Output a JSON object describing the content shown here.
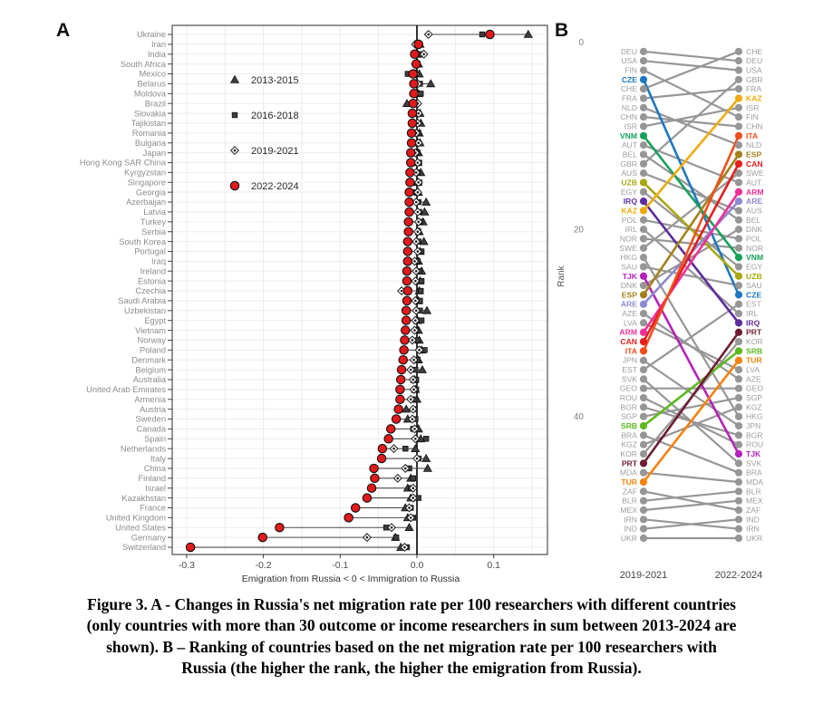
{
  "figure": {
    "panel_a_label": "A",
    "panel_b_label": "B",
    "caption_lines": [
      "Figure 3. A - Changes in Russia's net migration rate per 100 researchers with different countries",
      "(only countries with more than 30 outcome or income researchers in sum between 2013-2024 are",
      "shown). B – Ranking of countries based on the net migration rate per 100 researchers with",
      "Russia (the higher the rank, the higher the emigration from Russia)."
    ]
  },
  "chart_data": [
    {
      "type": "scatter",
      "title": "",
      "xlabel": "Emigration from Russia < 0 < Immigration to Russia",
      "xticks": [
        -0.3,
        -0.2,
        -0.1,
        0.0,
        0.1
      ],
      "xtick_labels": [
        "-0.3",
        "-0.2",
        "-0.1",
        "0.0",
        "0.1"
      ],
      "xlim": [
        -0.32,
        0.17
      ],
      "grid": true,
      "legend_position": "upper-left-inside",
      "zero_line": true,
      "marker_colors": {
        "default": "#3e3e3e",
        "highlight": "#e31a1c"
      },
      "categories": [
        "Ukraine",
        "Iran",
        "India",
        "South Africa",
        "Mexico",
        "Belarus",
        "Moldova",
        "Brazil",
        "Slovakia",
        "Tajikistan",
        "Romania",
        "Bulgaria",
        "Japan",
        "Hong Kong SAR China",
        "Kyrgyzstan",
        "Singapore",
        "Georgia",
        "Azerbaijan",
        "Latvia",
        "Turkey",
        "Serbia",
        "South Korea",
        "Portugal",
        "Iraq",
        "Ireland",
        "Estonia",
        "Czechia",
        "Saudi Arabia",
        "Uzbekistan",
        "Egypt",
        "Vietnam",
        "Norway",
        "Poland",
        "Denmark",
        "Belgium",
        "Australia",
        "United Arab Emirates",
        "Armenia",
        "Austria",
        "Sweden",
        "Canada",
        "Spain",
        "Netherlands",
        "Italy",
        "China",
        "Finland",
        "Israel",
        "Kazakhstan",
        "France",
        "United Kingdom",
        "United States",
        "Germany",
        "Switzerland"
      ],
      "series": [
        {
          "name": "2013-2015",
          "marker": "triangle",
          "values": [
            0.145,
            0.004,
            0.001,
            0.002,
            0.003,
            0.018,
            0.002,
            -0.013,
            0.004,
            0.005,
            0.003,
            0.004,
            0.002,
            0.001,
            0.005,
            0.001,
            0.002,
            0.012,
            0.01,
            0.008,
            0.003,
            0.009,
            0.004,
            0.002,
            0.006,
            0.004,
            0.003,
            0.002,
            0.013,
            0.001,
            0.002,
            0.003,
            0.006,
            0.002,
            0.007,
            -0.003,
            -0.002,
            0.0,
            -0.014,
            -0.012,
            0.002,
            0.005,
            -0.002,
            0.012,
            0.014,
            -0.008,
            -0.012,
            -0.008,
            -0.015,
            -0.012,
            -0.01,
            -0.028,
            -0.021
          ]
        },
        {
          "name": "2016-2018",
          "marker": "square",
          "values": [
            0.085,
            0.001,
            0.004,
            0.001,
            -0.012,
            0.004,
            0.005,
            -0.001,
            0.001,
            -0.001,
            0.002,
            0.001,
            0.001,
            0.003,
            0.001,
            0.003,
            -0.001,
            0.002,
            0.003,
            0.004,
            0.002,
            0.002,
            0.006,
            0.001,
            0.003,
            0.006,
            0.005,
            0.004,
            0.004,
            0.006,
            -0.001,
            0.001,
            0.01,
            0.001,
            -0.002,
            -0.001,
            -0.001,
            -0.003,
            -0.003,
            -0.002,
            -0.005,
            0.012,
            -0.015,
            0.002,
            -0.01,
            -0.005,
            -0.008,
            0.002,
            -0.008,
            -0.005,
            -0.04,
            -0.027,
            -0.013
          ]
        },
        {
          "name": "2019-2021",
          "marker": "diamond",
          "values": [
            0.015,
            -0.002,
            0.009,
            -0.002,
            -0.002,
            0.001,
            -0.001,
            0.001,
            0.002,
            0.001,
            -0.001,
            0.002,
            -0.002,
            0.001,
            -0.001,
            0.002,
            0.001,
            -0.001,
            0.001,
            0.002,
            0.001,
            -0.001,
            0.001,
            -0.003,
            -0.001,
            -0.002,
            -0.02,
            -0.002,
            -0.001,
            -0.002,
            -0.003,
            -0.006,
            0.003,
            -0.004,
            -0.008,
            -0.005,
            -0.004,
            -0.008,
            -0.005,
            -0.006,
            -0.003,
            -0.002,
            -0.03,
            0.0,
            -0.015,
            -0.025,
            -0.005,
            -0.005,
            -0.01,
            -0.008,
            -0.033,
            -0.065,
            -0.016
          ]
        },
        {
          "name": "2022-2024",
          "marker": "circle",
          "color": "#e31a1c",
          "values": [
            0.095,
            0.002,
            -0.003,
            -0.001,
            -0.005,
            -0.004,
            -0.004,
            -0.005,
            -0.006,
            -0.006,
            -0.007,
            -0.007,
            -0.008,
            -0.008,
            -0.009,
            -0.009,
            -0.01,
            -0.01,
            -0.01,
            -0.011,
            -0.011,
            -0.012,
            -0.012,
            -0.012,
            -0.013,
            -0.013,
            -0.012,
            -0.013,
            -0.014,
            -0.014,
            -0.015,
            -0.016,
            -0.017,
            -0.018,
            -0.02,
            -0.021,
            -0.022,
            -0.022,
            -0.024,
            -0.027,
            -0.034,
            -0.037,
            -0.045,
            -0.046,
            -0.056,
            -0.055,
            -0.059,
            -0.065,
            -0.08,
            -0.089,
            -0.179,
            -0.201,
            -0.295
          ]
        }
      ]
    },
    {
      "type": "bump",
      "ylabel": "Rank",
      "yticks": [
        0,
        20,
        40
      ],
      "columns": [
        "2019-2021",
        "2022-2024"
      ],
      "left_order": [
        "DEU",
        "USA",
        "FIN",
        "CZE",
        "CHE",
        "FRA",
        "NLD",
        "CHN",
        "ISR",
        "VNM",
        "AUT",
        "BEL",
        "GBR",
        "AUS",
        "UZB",
        "EGY",
        "IRQ",
        "KAZ",
        "POL",
        "IRL",
        "NOR",
        "SWE",
        "HKG",
        "SAU",
        "TJK",
        "DNK",
        "ESP",
        "ARE",
        "AZE",
        "LVA",
        "ARM",
        "CAN",
        "ITA",
        "JPN",
        "EST",
        "SVK",
        "GEO",
        "ROU",
        "BGR",
        "SGP",
        "SRB",
        "BRA",
        "KGZ",
        "KOR",
        "PRT",
        "MDA",
        "TUR",
        "ZAF",
        "BLR",
        "MEX",
        "IRN",
        "IND",
        "UKR"
      ],
      "right_order": [
        "CHE",
        "DEU",
        "USA",
        "GBR",
        "FRA",
        "KAZ",
        "ISR",
        "FIN",
        "CHN",
        "ITA",
        "NLD",
        "ESP",
        "CAN",
        "SWE",
        "AUT",
        "ARM",
        "ARE",
        "AUS",
        "BEL",
        "DNK",
        "POL",
        "NOR",
        "VNM",
        "EGY",
        "UZB",
        "SAU",
        "CZE",
        "EST",
        "IRL",
        "IRQ",
        "PRT",
        "KOR",
        "SRB",
        "TUR",
        "LVA",
        "AZE",
        "GEO",
        "SGP",
        "KGZ",
        "HKG",
        "JPN",
        "BGR",
        "ROU",
        "TJK",
        "SVK",
        "BRA",
        "MDA",
        "BLR",
        "MEX",
        "ZAF",
        "IND",
        "IRN",
        "UKR"
      ],
      "highlight_colors": {
        "CZE": "#1d78c1",
        "VNM": "#18a05c",
        "UZB": "#a8a813",
        "IRQ": "#5c2d9c",
        "KAZ": "#efaa10",
        "TJK": "#b522b8",
        "ESP": "#a3801c",
        "ARE": "#8d88cf",
        "ARM": "#ef2f96",
        "CAN": "#e31d1d",
        "ITA": "#f04e1d",
        "SRB": "#5cb81e",
        "PRT": "#6e1e33",
        "TUR": "#f5820b"
      },
      "default_color": "#969696",
      "default_label_color": "#9e9e9e"
    }
  ]
}
